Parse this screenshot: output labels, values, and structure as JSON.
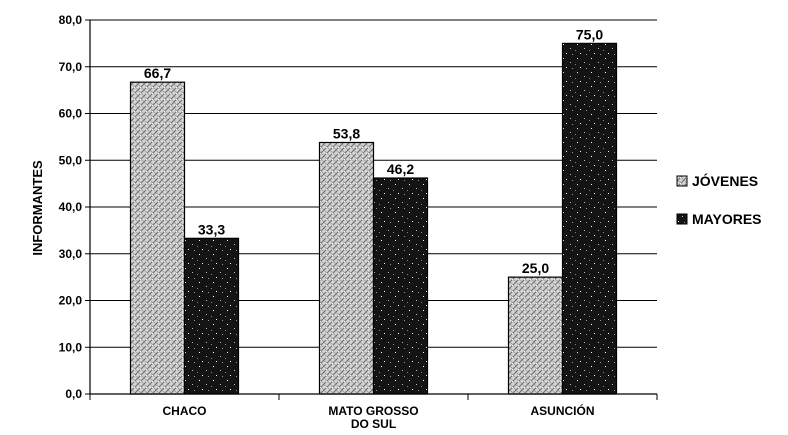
{
  "chart_data": {
    "type": "bar",
    "categories": [
      [
        "CHACO"
      ],
      [
        "MATO GROSSO",
        "DO SUL"
      ],
      [
        "ASUNCIÓN"
      ]
    ],
    "series": [
      {
        "name": "JÓVENES",
        "values": [
          66.7,
          53.8,
          25.0
        ],
        "labels": [
          "66,7",
          "53,8",
          "25,0"
        ],
        "pattern": "light-stipple"
      },
      {
        "name": "MAYORES",
        "values": [
          33.3,
          46.2,
          75.0
        ],
        "labels": [
          "33,3",
          "46,2",
          "75,0"
        ],
        "pattern": "dark-stipple"
      }
    ],
    "ylabel": "INFORMANTES",
    "xlabel": "",
    "ylim": [
      0,
      80
    ],
    "yticks": [
      0,
      10,
      20,
      30,
      40,
      50,
      60,
      70,
      80
    ],
    "ytick_labels": [
      "0,0",
      "10,0",
      "20,0",
      "30,0",
      "40,0",
      "50,0",
      "60,0",
      "70,0",
      "80,0"
    ],
    "grid": true,
    "legend": "right"
  }
}
